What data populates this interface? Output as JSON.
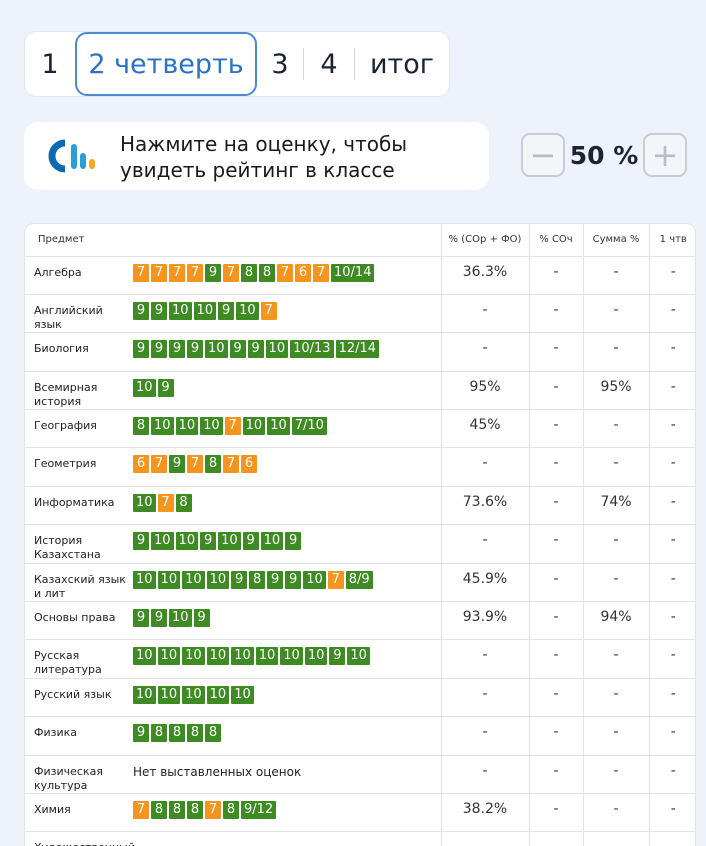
{
  "terms": {
    "tab1": "1",
    "tab2": "2 четверть",
    "tab3": "3",
    "tab4": "4",
    "tab5": "итог"
  },
  "hint": {
    "line1": "Нажмите на оценку, чтобы",
    "line2": "увидеть рейтинг в классе",
    "logo_colors": [
      "#0a6ab3",
      "#2a9fd6",
      "#f5a623"
    ]
  },
  "percent": {
    "minus": "−",
    "value": "50 %",
    "plus": "+"
  },
  "colors": {
    "green": "#3d8b22",
    "orange": "#f5941e",
    "accent": "#2a72c7"
  },
  "table": {
    "headers": {
      "subject": "Предмет",
      "sor_fo": "% (СОр + ФО)",
      "soch": "% СОч",
      "sum": "Сумма %",
      "q1": "1 чтв"
    },
    "rows": [
      {
        "subject": "Алгебра",
        "grades": [
          {
            "v": "7",
            "c": "o"
          },
          {
            "v": "7",
            "c": "o"
          },
          {
            "v": "7",
            "c": "o"
          },
          {
            "v": "7",
            "c": "o"
          },
          {
            "v": "9",
            "c": "g"
          },
          {
            "v": "7",
            "c": "o"
          },
          {
            "v": "8",
            "c": "g"
          },
          {
            "v": "8",
            "c": "g"
          },
          {
            "v": "7",
            "c": "o"
          },
          {
            "v": "6",
            "c": "o"
          },
          {
            "v": "7",
            "c": "o"
          },
          {
            "v": "10/14",
            "c": "g"
          }
        ],
        "sor_fo": "36.3%",
        "soch": "-",
        "sum": "-",
        "q1": "-"
      },
      {
        "subject": "Английский язык",
        "grades": [
          {
            "v": "9",
            "c": "g"
          },
          {
            "v": "9",
            "c": "g"
          },
          {
            "v": "10",
            "c": "g"
          },
          {
            "v": "10",
            "c": "g"
          },
          {
            "v": "9",
            "c": "g"
          },
          {
            "v": "10",
            "c": "g"
          },
          {
            "v": "7",
            "c": "o"
          }
        ],
        "sor_fo": "-",
        "soch": "-",
        "sum": "-",
        "q1": "-"
      },
      {
        "subject": "Биология",
        "grades": [
          {
            "v": "9",
            "c": "g"
          },
          {
            "v": "9",
            "c": "g"
          },
          {
            "v": "9",
            "c": "g"
          },
          {
            "v": "9",
            "c": "g"
          },
          {
            "v": "10",
            "c": "g"
          },
          {
            "v": "9",
            "c": "g"
          },
          {
            "v": "9",
            "c": "g"
          },
          {
            "v": "10",
            "c": "g"
          },
          {
            "v": "10/13",
            "c": "g"
          },
          {
            "v": "12/14",
            "c": "g"
          }
        ],
        "sor_fo": "-",
        "soch": "-",
        "sum": "-",
        "q1": "-"
      },
      {
        "subject": "Всемирная история",
        "grades": [
          {
            "v": "10",
            "c": "g"
          },
          {
            "v": "9",
            "c": "g"
          }
        ],
        "sor_fo": "95%",
        "soch": "-",
        "sum": "95%",
        "q1": "-"
      },
      {
        "subject": "География",
        "grades": [
          {
            "v": "8",
            "c": "g"
          },
          {
            "v": "10",
            "c": "g"
          },
          {
            "v": "10",
            "c": "g"
          },
          {
            "v": "10",
            "c": "g"
          },
          {
            "v": "7",
            "c": "o"
          },
          {
            "v": "10",
            "c": "g"
          },
          {
            "v": "10",
            "c": "g"
          },
          {
            "v": "7/10",
            "c": "g"
          }
        ],
        "sor_fo": "45%",
        "soch": "-",
        "sum": "-",
        "q1": "-"
      },
      {
        "subject": "Геометрия",
        "grades": [
          {
            "v": "6",
            "c": "o"
          },
          {
            "v": "7",
            "c": "o"
          },
          {
            "v": "9",
            "c": "g"
          },
          {
            "v": "7",
            "c": "o"
          },
          {
            "v": "8",
            "c": "g"
          },
          {
            "v": "7",
            "c": "o"
          },
          {
            "v": "6",
            "c": "o"
          }
        ],
        "sor_fo": "-",
        "soch": "-",
        "sum": "-",
        "q1": "-"
      },
      {
        "subject": "Информатика",
        "grades": [
          {
            "v": "10",
            "c": "g"
          },
          {
            "v": "7",
            "c": "o"
          },
          {
            "v": "8",
            "c": "g"
          }
        ],
        "sor_fo": "73.6%",
        "soch": "-",
        "sum": "74%",
        "q1": "-"
      },
      {
        "subject": "История Казахстана",
        "grades": [
          {
            "v": "9",
            "c": "g"
          },
          {
            "v": "10",
            "c": "g"
          },
          {
            "v": "10",
            "c": "g"
          },
          {
            "v": "9",
            "c": "g"
          },
          {
            "v": "10",
            "c": "g"
          },
          {
            "v": "9",
            "c": "g"
          },
          {
            "v": "10",
            "c": "g"
          },
          {
            "v": "9",
            "c": "g"
          }
        ],
        "sor_fo": "-",
        "soch": "-",
        "sum": "-",
        "q1": "-"
      },
      {
        "subject": "Казахский язык и лит",
        "grades": [
          {
            "v": "10",
            "c": "g"
          },
          {
            "v": "10",
            "c": "g"
          },
          {
            "v": "10",
            "c": "g"
          },
          {
            "v": "10",
            "c": "g"
          },
          {
            "v": "9",
            "c": "g"
          },
          {
            "v": "8",
            "c": "g"
          },
          {
            "v": "9",
            "c": "g"
          },
          {
            "v": "9",
            "c": "g"
          },
          {
            "v": "10",
            "c": "g"
          },
          {
            "v": "7",
            "c": "o"
          },
          {
            "v": "8/9",
            "c": "g"
          }
        ],
        "sor_fo": "45.9%",
        "soch": "-",
        "sum": "-",
        "q1": "-"
      },
      {
        "subject": "Основы права",
        "grades": [
          {
            "v": "9",
            "c": "g"
          },
          {
            "v": "9",
            "c": "g"
          },
          {
            "v": "10",
            "c": "g"
          },
          {
            "v": "9",
            "c": "g"
          }
        ],
        "sor_fo": "93.9%",
        "soch": "-",
        "sum": "94%",
        "q1": "-"
      },
      {
        "subject": "Русская литература",
        "grades": [
          {
            "v": "10",
            "c": "g"
          },
          {
            "v": "10",
            "c": "g"
          },
          {
            "v": "10",
            "c": "g"
          },
          {
            "v": "10",
            "c": "g"
          },
          {
            "v": "10",
            "c": "g"
          },
          {
            "v": "10",
            "c": "g"
          },
          {
            "v": "10",
            "c": "g"
          },
          {
            "v": "10",
            "c": "g"
          },
          {
            "v": "9",
            "c": "g"
          },
          {
            "v": "10",
            "c": "g"
          }
        ],
        "sor_fo": "-",
        "soch": "-",
        "sum": "-",
        "q1": "-"
      },
      {
        "subject": "Русский язык",
        "grades": [
          {
            "v": "10",
            "c": "g"
          },
          {
            "v": "10",
            "c": "g"
          },
          {
            "v": "10",
            "c": "g"
          },
          {
            "v": "10",
            "c": "g"
          },
          {
            "v": "10",
            "c": "g"
          }
        ],
        "sor_fo": "-",
        "soch": "-",
        "sum": "-",
        "q1": "-"
      },
      {
        "subject": "Физика",
        "grades": [
          {
            "v": "9",
            "c": "g"
          },
          {
            "v": "8",
            "c": "g"
          },
          {
            "v": "8",
            "c": "g"
          },
          {
            "v": "8",
            "c": "g"
          },
          {
            "v": "8",
            "c": "g"
          }
        ],
        "sor_fo": "-",
        "soch": "-",
        "sum": "-",
        "q1": "-"
      },
      {
        "subject": "Физическая культура",
        "grades": [],
        "no_grades": "Нет выставленных оценок",
        "sor_fo": "-",
        "soch": "-",
        "sum": "-",
        "q1": "-"
      },
      {
        "subject": "Химия",
        "grades": [
          {
            "v": "7",
            "c": "o"
          },
          {
            "v": "8",
            "c": "g"
          },
          {
            "v": "8",
            "c": "g"
          },
          {
            "v": "8",
            "c": "g"
          },
          {
            "v": "7",
            "c": "o"
          },
          {
            "v": "8",
            "c": "g"
          },
          {
            "v": "9/12",
            "c": "g"
          }
        ],
        "sor_fo": "38.2%",
        "soch": "-",
        "sum": "-",
        "q1": "-"
      },
      {
        "subject": "Художественный",
        "grades": [],
        "sor_fo": "-",
        "soch": "-",
        "sum": "-",
        "q1": "-"
      }
    ]
  }
}
